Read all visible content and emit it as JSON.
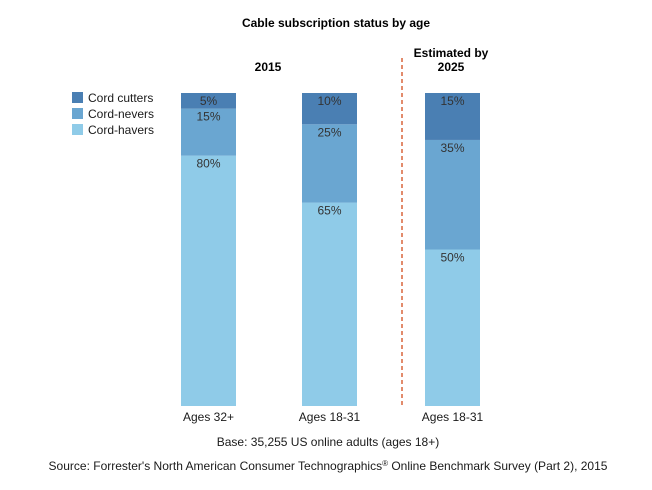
{
  "chart_data": {
    "type": "bar",
    "stacked": true,
    "title": "Cable subscription status by age",
    "group_labels": [
      "2015",
      "Estimated by 2025"
    ],
    "categories": [
      "Ages 32+",
      "Ages 18-31",
      "Ages 18-31"
    ],
    "series": [
      {
        "name": "Cord-havers",
        "values": [
          80,
          65,
          50
        ],
        "labels": [
          "80%",
          "65%",
          "50%"
        ],
        "color": "#8fcbe8"
      },
      {
        "name": "Cord-nevers",
        "values": [
          15,
          25,
          35
        ],
        "labels": [
          "15%",
          "25%",
          "35%"
        ],
        "color": "#6aa6d1"
      },
      {
        "name": "Cord cutters",
        "values": [
          5,
          10,
          15
        ],
        "labels": [
          "5%",
          "10%",
          "15%"
        ],
        "color": "#4a7fb3"
      }
    ],
    "legend_order": [
      "Cord cutters",
      "Cord-nevers",
      "Cord-havers"
    ],
    "legend_position": "top-left",
    "ylim": [
      0,
      100
    ],
    "grid": false,
    "divider_color": "#d9653b"
  },
  "notes": {
    "base": "Base: 35,255 US online adults (ages 18+)",
    "source_prefix": "Source: Forrester's North American Consumer Technographics",
    "source_reg": "®",
    "source_suffix": " Online Benchmark Survey (Part 2), 2015"
  }
}
